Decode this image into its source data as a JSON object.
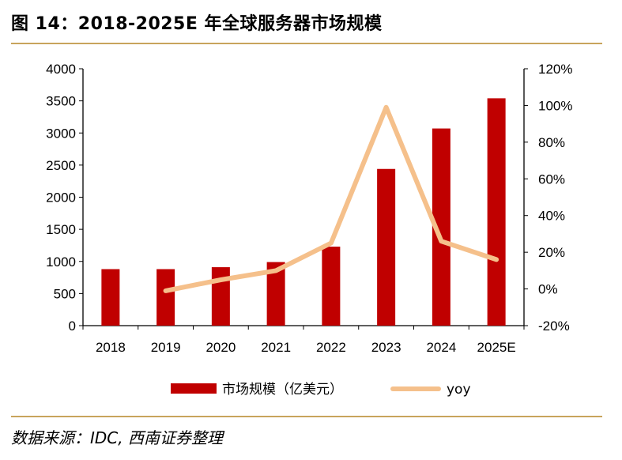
{
  "header": {
    "title": "图 14：2018-2025E 年全球服务器市场规模"
  },
  "footer": {
    "source": "数据来源：IDC, 西南证券整理"
  },
  "colors": {
    "bar": "#c00000",
    "line": "#f5c08b",
    "rule": "#c8a45c"
  },
  "chart_data": {
    "type": "bar",
    "title": "2018-2025E 年全球服务器市场规模",
    "categories": [
      "2018",
      "2019",
      "2020",
      "2021",
      "2022",
      "2023",
      "2024",
      "2025E"
    ],
    "series": [
      {
        "name": "市场规模（亿美元）",
        "type": "bar",
        "axis": "left",
        "values": [
          880,
          880,
          910,
          990,
          1230,
          2440,
          3070,
          3540
        ]
      },
      {
        "name": "yoy",
        "type": "line",
        "axis": "right",
        "values": [
          null,
          -1,
          5,
          10,
          25,
          99,
          26,
          16
        ]
      }
    ],
    "y_left": {
      "min": 0,
      "max": 4000,
      "step": 500,
      "ticks": [
        "0",
        "500",
        "1000",
        "1500",
        "2000",
        "2500",
        "3000",
        "3500",
        "4000"
      ]
    },
    "y_right": {
      "min": -20,
      "max": 120,
      "step": 20,
      "ticks": [
        "-20%",
        "0%",
        "20%",
        "40%",
        "60%",
        "80%",
        "100%",
        "120%"
      ]
    },
    "grid": false,
    "legend_position": "bottom"
  }
}
